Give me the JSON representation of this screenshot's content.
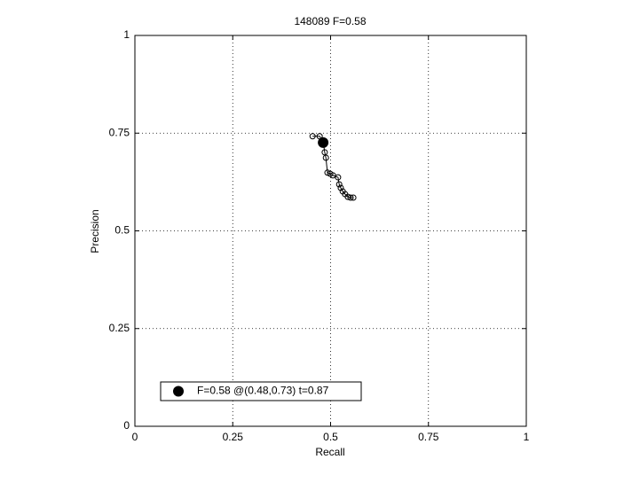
{
  "chart_data": {
    "type": "line",
    "title": "148089 F=0.58",
    "xlabel": "Recall",
    "ylabel": "Precision",
    "xlim": [
      0,
      1
    ],
    "ylim": [
      0,
      1
    ],
    "xticks": [
      0,
      0.25,
      0.5,
      0.75,
      1
    ],
    "yticks": [
      0,
      0.25,
      0.5,
      0.75,
      1
    ],
    "grid": true,
    "legend": "lower left",
    "series": [
      {
        "color": "#000000",
        "marker": "o",
        "x": [
          0.454,
          0.472,
          0.481,
          0.485,
          0.488,
          0.492,
          0.499,
          0.506,
          0.519,
          0.522,
          0.526,
          0.531,
          0.537,
          0.544,
          0.551,
          0.558
        ],
        "values": [
          0.742,
          0.742,
          0.728,
          0.701,
          0.687,
          0.649,
          0.646,
          0.642,
          0.637,
          0.619,
          0.61,
          0.601,
          0.594,
          0.587,
          0.585,
          0.585
        ]
      },
      {
        "name": "F=0.58 @(0.48,0.73) t=0.87",
        "color": "#000000",
        "marker": "dot",
        "x": [
          0.481
        ],
        "values": [
          0.726
        ]
      }
    ]
  }
}
